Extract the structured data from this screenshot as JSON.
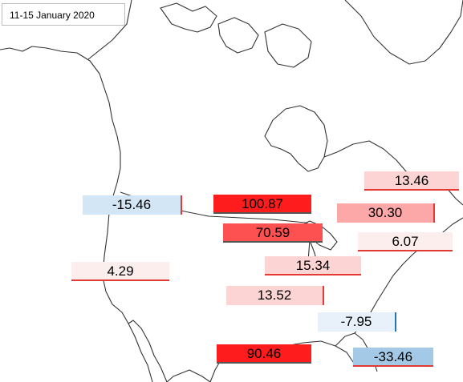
{
  "title": "11-15 January 2020",
  "colors": {
    "pos_strong": "#fe1c1c",
    "pos_med": "#fd5050",
    "pos_light": "#fca8a8",
    "pos_pale": "#fcd4d4",
    "pos_faint": "#fdeeee",
    "neg_light": "#d3e6f5",
    "neg_faint": "#e8f1fa",
    "neg_med": "#a3c9e6",
    "coast": "#333333"
  },
  "values": [
    {
      "id": "v1",
      "label": "-15.46",
      "value": -15.46
    },
    {
      "id": "v2",
      "label": "100.87",
      "value": 100.87
    },
    {
      "id": "v3",
      "label": "13.46",
      "value": 13.46
    },
    {
      "id": "v4",
      "label": "30.30",
      "value": 30.3
    },
    {
      "id": "v5",
      "label": "70.59",
      "value": 70.59
    },
    {
      "id": "v6",
      "label": "6.07",
      "value": 6.07
    },
    {
      "id": "v7",
      "label": "4.29",
      "value": 4.29
    },
    {
      "id": "v8",
      "label": "15.34",
      "value": 15.34
    },
    {
      "id": "v9",
      "label": "13.52",
      "value": 13.52
    },
    {
      "id": "v10",
      "label": "-7.95",
      "value": -7.95
    },
    {
      "id": "v11",
      "label": "90.46",
      "value": 90.46
    },
    {
      "id": "v12",
      "label": "-33.46",
      "value": -33.46
    }
  ]
}
